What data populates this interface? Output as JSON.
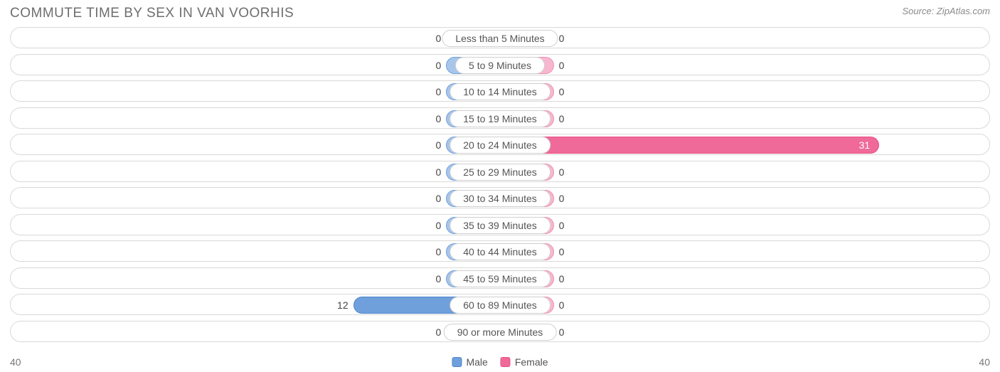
{
  "title": "COMMUTE TIME BY SEX IN VAN VOORHIS",
  "source": "Source: ZipAtlas.com",
  "axis_max_left": "40",
  "axis_max_right": "40",
  "axis_max_value": 40,
  "colors": {
    "male_fill": "#a8c6ea",
    "male_border": "#6fa0db",
    "male_strong_fill": "#6fa0db",
    "male_strong_border": "#4f86cf",
    "female_fill": "#f7b8cf",
    "female_border": "#ef8db2",
    "female_strong_fill": "#ef6a99",
    "female_strong_border": "#e84f86",
    "track_border": "#d9d9d9",
    "label_border": "#d0d0d0",
    "text": "#555555",
    "bg": "#ffffff"
  },
  "min_bar_width_pct": 5.5,
  "legend": {
    "male": "Male",
    "female": "Female"
  },
  "rows": [
    {
      "label": "Less than 5 Minutes",
      "male": 0,
      "female": 0
    },
    {
      "label": "5 to 9 Minutes",
      "male": 0,
      "female": 0
    },
    {
      "label": "10 to 14 Minutes",
      "male": 0,
      "female": 0
    },
    {
      "label": "15 to 19 Minutes",
      "male": 0,
      "female": 0
    },
    {
      "label": "20 to 24 Minutes",
      "male": 0,
      "female": 31
    },
    {
      "label": "25 to 29 Minutes",
      "male": 0,
      "female": 0
    },
    {
      "label": "30 to 34 Minutes",
      "male": 0,
      "female": 0
    },
    {
      "label": "35 to 39 Minutes",
      "male": 0,
      "female": 0
    },
    {
      "label": "40 to 44 Minutes",
      "male": 0,
      "female": 0
    },
    {
      "label": "45 to 59 Minutes",
      "male": 0,
      "female": 0
    },
    {
      "label": "60 to 89 Minutes",
      "male": 12,
      "female": 0
    },
    {
      "label": "90 or more Minutes",
      "male": 0,
      "female": 0
    }
  ]
}
